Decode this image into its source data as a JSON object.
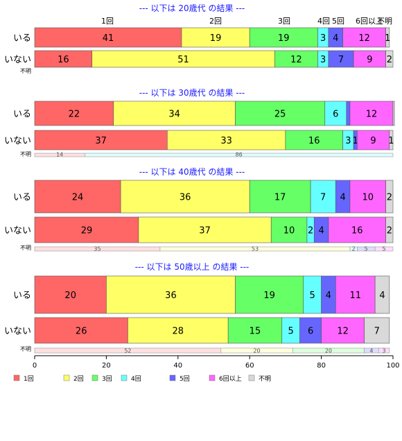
{
  "chart_data": {
    "type": "bar",
    "orientation": "horizontal",
    "stacked": "percent",
    "xlim": [
      0,
      100
    ],
    "xticks": [
      "0",
      "20",
      "40",
      "60",
      "80",
      "100"
    ],
    "legend_position": "bottom",
    "categories": [
      "1回",
      "2回",
      "3回",
      "4回",
      "5回",
      "6回以上",
      "不明"
    ],
    "colors": [
      "#ff6666",
      "#ffff66",
      "#66ff66",
      "#66ffff",
      "#6666ff",
      "#ff66ff",
      "#d9d9d9"
    ],
    "top_labels": [
      "1回",
      "2回",
      "3回",
      "4回",
      "5回",
      "6回以上",
      "不明"
    ],
    "groups": [
      {
        "title": "--- 以下は 20歳代 の結果 ---",
        "rows": [
          {
            "label": "いる",
            "values": [
              41,
              19,
              19,
              3,
              4,
              12,
              1
            ],
            "shown": [
              "41",
              "19",
              "19",
              "3",
              "4",
              "12",
              "1"
            ]
          },
          {
            "label": "いない",
            "values": [
              16,
              51,
              12,
              3,
              7,
              9,
              2
            ],
            "shown": [
              "16",
              "51",
              "12",
              "3",
              "7",
              "9",
              "2"
            ]
          },
          {
            "label": "不明",
            "values": [],
            "shown": []
          }
        ]
      },
      {
        "title": "--- 以下は 30歳代 の結果 ---",
        "rows": [
          {
            "label": "いる",
            "values": [
              22,
              34,
              25,
              6,
              1,
              12,
              0.4
            ],
            "shown": [
              "22",
              "34",
              "25",
              "6",
              "",
              "12",
              ""
            ]
          },
          {
            "label": "いない",
            "values": [
              37,
              33,
              16,
              3,
              1,
              9,
              1
            ],
            "shown": [
              "37",
              "33",
              "16",
              "3",
              "1",
              "9",
              "1"
            ]
          },
          {
            "label": "不明",
            "values": [
              14,
              0,
              0,
              86,
              0,
              0,
              0
            ],
            "shown": [
              "14",
              "",
              "",
              "86",
              "",
              "",
              ""
            ]
          }
        ]
      },
      {
        "title": "--- 以下は 40歳代 の結果 ---",
        "rows": [
          {
            "label": "いる",
            "values": [
              24,
              36,
              17,
              7,
              4,
              10,
              2
            ],
            "shown": [
              "24",
              "36",
              "17",
              "7",
              "4",
              "10",
              "2"
            ]
          },
          {
            "label": "いない",
            "values": [
              29,
              37,
              10,
              2,
              4,
              16,
              2
            ],
            "shown": [
              "29",
              "37",
              "10",
              "2",
              "4",
              "16",
              "2"
            ]
          },
          {
            "label": "不明",
            "values": [
              35,
              53,
              0,
              2,
              5,
              5,
              0
            ],
            "shown": [
              "35",
              "53",
              "",
              "2",
              "5",
              "5",
              ""
            ]
          }
        ]
      },
      {
        "title": "--- 以下は 50歳以上 の結果 ---",
        "rows": [
          {
            "label": "いる",
            "values": [
              20,
              36,
              19,
              5,
              4,
              11,
              4
            ],
            "shown": [
              "20",
              "36",
              "19",
              "5",
              "4",
              "11",
              "4"
            ]
          },
          {
            "label": "いない",
            "values": [
              26,
              28,
              15,
              5,
              6,
              12,
              7
            ],
            "shown": [
              "26",
              "28",
              "15",
              "5",
              "6",
              "12",
              "7"
            ]
          },
          {
            "label": "不明",
            "values": [
              52,
              20,
              20,
              0,
              4,
              3,
              0
            ],
            "shown": [
              "52",
              "20",
              "20",
              "",
              "4",
              "3",
              ""
            ]
          }
        ]
      }
    ]
  }
}
